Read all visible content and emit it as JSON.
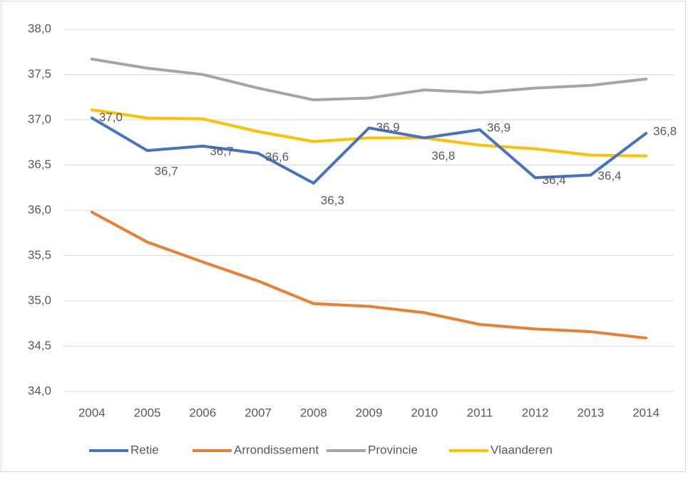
{
  "chart_data": {
    "type": "line",
    "categories": [
      "2004",
      "2005",
      "2006",
      "2007",
      "2008",
      "2009",
      "2010",
      "2011",
      "2012",
      "2013",
      "2014"
    ],
    "ylim": [
      34,
      38
    ],
    "yticks": [
      {
        "value": 34,
        "label": "34,0"
      },
      {
        "value": 34.5,
        "label": "34,5"
      },
      {
        "value": 35,
        "label": "35,0"
      },
      {
        "value": 35.5,
        "label": "35,5"
      },
      {
        "value": 36,
        "label": "36,0"
      },
      {
        "value": 36.5,
        "label": "36,5"
      },
      {
        "value": 37,
        "label": "37,0"
      },
      {
        "value": 37.5,
        "label": "37,5"
      },
      {
        "value": 38,
        "label": "38,0"
      }
    ],
    "grid": true,
    "legend": "bottom",
    "series": [
      {
        "name": "Retie",
        "color": "#4472c4",
        "values": [
          37.02,
          36.66,
          36.71,
          36.63,
          36.3,
          36.91,
          36.8,
          36.89,
          36.36,
          36.39,
          36.85
        ],
        "value_labels": [
          "37,0",
          "36,7",
          "36,7",
          "36,6",
          "36,3",
          "36,9",
          "36,8",
          "36,9",
          "36,4",
          "36,4",
          "36,8"
        ]
      },
      {
        "name": "Arrondissement",
        "color": "#ed7d31",
        "values": [
          35.98,
          35.65,
          35.43,
          35.22,
          34.97,
          34.94,
          34.87,
          34.74,
          34.69,
          34.66,
          34.59
        ]
      },
      {
        "name": "Provincie",
        "color": "#a5a5a5",
        "values": [
          37.67,
          37.57,
          37.5,
          37.35,
          37.22,
          37.24,
          37.33,
          37.3,
          37.35,
          37.38,
          37.45
        ]
      },
      {
        "name": "Vlaanderen",
        "color": "#ffc000",
        "values": [
          37.11,
          37.02,
          37.01,
          36.87,
          36.76,
          36.8,
          36.8,
          36.72,
          36.68,
          36.61,
          36.6
        ]
      }
    ]
  }
}
